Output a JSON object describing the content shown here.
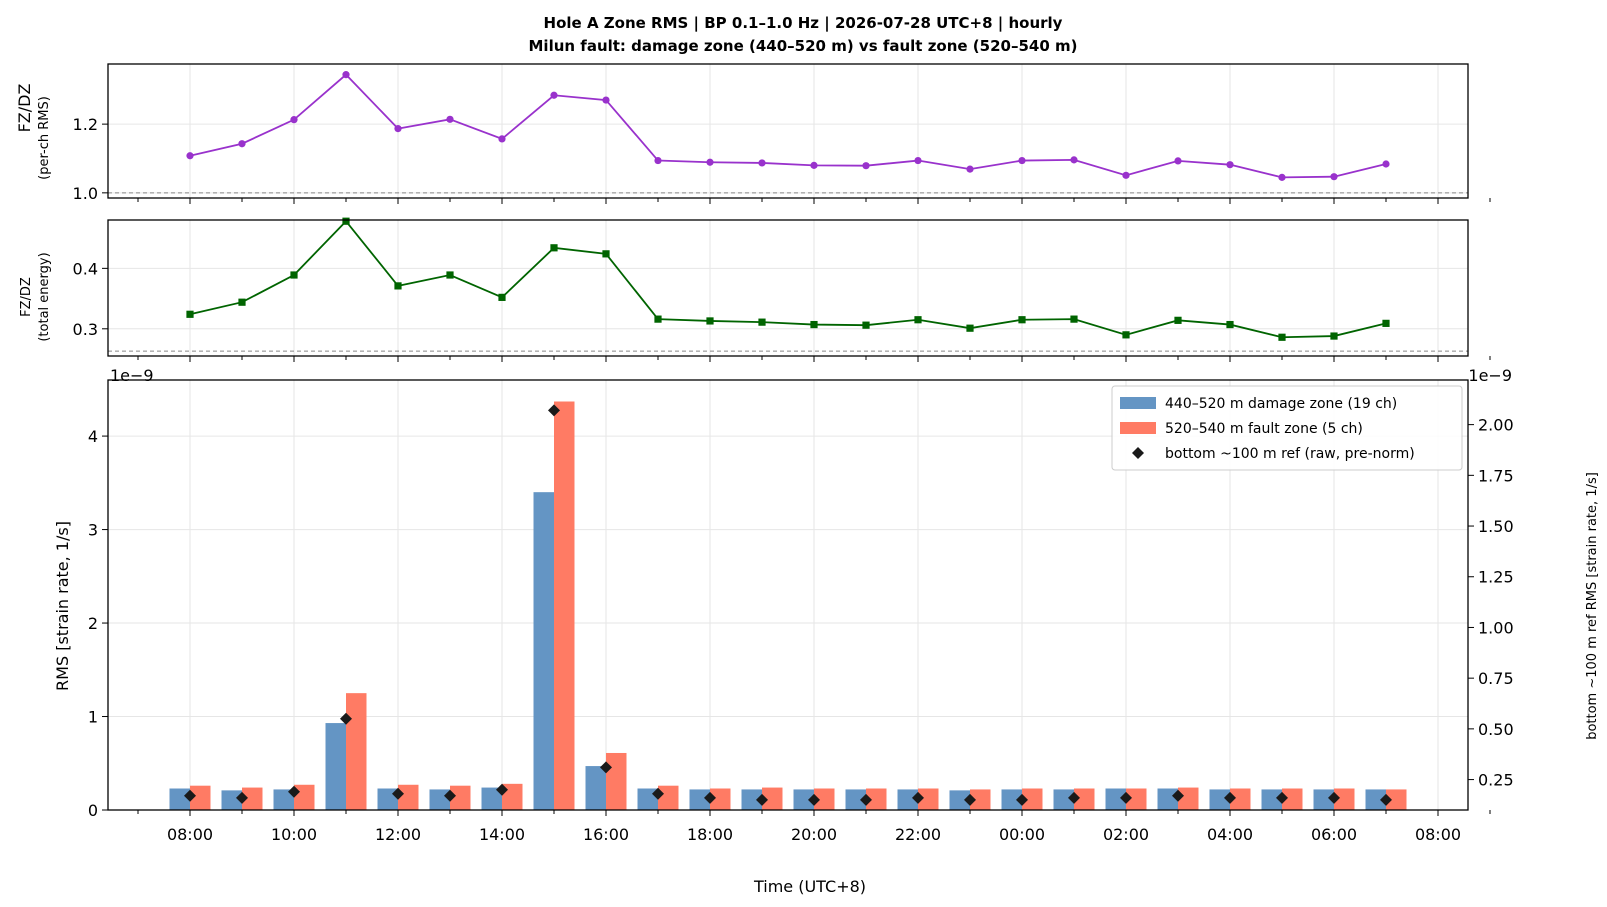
{
  "title_line1": "Hole A Zone RMS  |  BP 0.1–1.0 Hz  |  2026-07-28 UTC+8  |  hourly",
  "title_line2": "Milun fault: damage zone (440–520 m) vs fault zone (520–540 m)",
  "colors": {
    "ratio_rms": "#9932cc",
    "ratio_energy": "#006400",
    "damage_zone": "#6495c4",
    "fault_zone": "#ff7b64",
    "ref_marker": "#1a1a1a"
  },
  "chart_data": [
    {
      "type": "line",
      "ylabel": "FZ/DZ\n(per-ch RMS)",
      "ylabel_line1": "FZ/DZ",
      "ylabel_line2": "(per-ch RMS)",
      "ylim": [
        0.985,
        1.375
      ],
      "yticks": [
        "1.0",
        "1.2"
      ],
      "reference_line": 1.0,
      "marker": "circle",
      "series": [
        {
          "name": "",
          "values": [
            1.108,
            1.143,
            1.213,
            1.344,
            1.187,
            1.214,
            1.157,
            1.284,
            1.27,
            1.094,
            1.089,
            1.087,
            1.08,
            1.079,
            1.094,
            1.069,
            1.094,
            1.096,
            1.051,
            1.093,
            1.082,
            1.045,
            1.047,
            1.084
          ]
        }
      ]
    },
    {
      "type": "line",
      "ylabel_line1": "FZ/DZ",
      "ylabel_line2": "(total energy)",
      "ylim": [
        0.255,
        0.48
      ],
      "yticks": [
        "0.3",
        "0.4"
      ],
      "reference_line": 0.263,
      "marker": "square",
      "series": [
        {
          "name": "",
          "values": [
            0.324,
            0.344,
            0.389,
            0.478,
            0.371,
            0.389,
            0.352,
            0.434,
            0.424,
            0.316,
            0.313,
            0.311,
            0.307,
            0.306,
            0.315,
            0.301,
            0.315,
            0.316,
            0.29,
            0.314,
            0.307,
            0.286,
            0.288,
            0.309
          ]
        }
      ]
    },
    {
      "type": "bar",
      "xlabel": "Time (UTC+8)",
      "ylabel": "RMS  [strain rate, 1/s]",
      "ylabel_right": "bottom ~100 m ref RMS  [strain rate, 1/s]",
      "offset_left": "1e−9",
      "offset_right": "1e−9",
      "ylim": [
        0,
        4.6
      ],
      "ylim_right": [
        0.1,
        2.22
      ],
      "yticks": [
        "0",
        "1",
        "2",
        "3",
        "4"
      ],
      "yticks_right": [
        "0.25",
        "0.50",
        "0.75",
        "1.00",
        "1.25",
        "1.50",
        "1.75",
        "2.00"
      ],
      "x_tick_labels": [
        "08:00",
        "10:00",
        "12:00",
        "14:00",
        "16:00",
        "18:00",
        "20:00",
        "22:00",
        "00:00",
        "02:00",
        "04:00",
        "06:00",
        "08:00"
      ],
      "categories": [
        "08:00",
        "09:00",
        "10:00",
        "11:00",
        "12:00",
        "13:00",
        "14:00",
        "15:00",
        "16:00",
        "17:00",
        "18:00",
        "19:00",
        "20:00",
        "21:00",
        "22:00",
        "23:00",
        "00:00",
        "01:00",
        "02:00",
        "03:00",
        "04:00",
        "05:00",
        "06:00",
        "07:00"
      ],
      "legend_position": "top-right",
      "series": [
        {
          "name": "440–520 m  damage zone (19 ch)",
          "values": [
            0.23,
            0.21,
            0.22,
            0.93,
            0.23,
            0.22,
            0.24,
            3.4,
            0.47,
            0.23,
            0.22,
            0.22,
            0.22,
            0.22,
            0.22,
            0.21,
            0.22,
            0.22,
            0.23,
            0.23,
            0.22,
            0.22,
            0.22,
            0.22
          ]
        },
        {
          "name": "520–540 m  fault zone (5 ch)",
          "values": [
            0.26,
            0.24,
            0.27,
            1.25,
            0.27,
            0.26,
            0.28,
            4.37,
            0.61,
            0.26,
            0.23,
            0.24,
            0.23,
            0.23,
            0.23,
            0.22,
            0.23,
            0.23,
            0.23,
            0.24,
            0.23,
            0.23,
            0.23,
            0.22
          ]
        },
        {
          "name": "bottom ~100 m ref (raw, pre-norm)",
          "axis": "right",
          "values": [
            0.17,
            0.16,
            0.19,
            0.55,
            0.18,
            0.17,
            0.2,
            2.07,
            0.31,
            0.18,
            0.16,
            0.15,
            0.15,
            0.15,
            0.16,
            0.15,
            0.15,
            0.16,
            0.16,
            0.17,
            0.16,
            0.16,
            0.16,
            0.15
          ]
        }
      ]
    }
  ]
}
